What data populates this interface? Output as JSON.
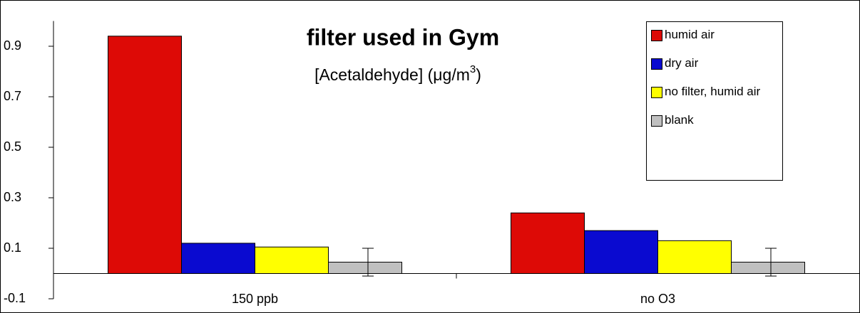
{
  "chart_data": {
    "type": "bar",
    "title": "filter used in Gym",
    "subtitle": [
      "[Acetaldehyde] (μg/m",
      "3",
      ")"
    ],
    "categories": [
      "150 ppb",
      "no O3"
    ],
    "series": [
      {
        "name": "humid air",
        "color": "#dd0a06",
        "values": [
          0.94,
          0.24
        ]
      },
      {
        "name": "dry air",
        "color": "#0a0ad0",
        "values": [
          0.12,
          0.17
        ]
      },
      {
        "name": "no filter, humid air",
        "color": "#ffff00",
        "values": [
          0.105,
          0.13
        ]
      },
      {
        "name": "blank",
        "color": "#c0c0c0",
        "values": [
          0.045,
          0.045
        ],
        "errors": [
          0.055,
          0.055
        ]
      }
    ],
    "ylim": [
      -0.1,
      1.0
    ],
    "yticks": [
      -0.1,
      0.1,
      0.3,
      0.5,
      0.7,
      0.9
    ],
    "grid": false,
    "legend": "top-right"
  }
}
